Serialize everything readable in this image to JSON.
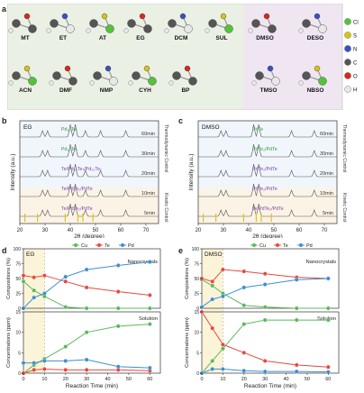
{
  "panel_a": {
    "letter": "a",
    "molecules": [
      "MT",
      "ET",
      "AT",
      "EG",
      "DCM",
      "SUL",
      "DMSO",
      "DESO",
      "ACN",
      "DMF",
      "NMP",
      "CYH",
      "BP",
      "TMSO",
      "NBSO"
    ],
    "legend": [
      "Cl",
      "S",
      "N",
      "C",
      "O",
      "H"
    ],
    "legend_colors": [
      "#54c23a",
      "#d8c21a",
      "#3b4fc2",
      "#555555",
      "#d42a1f",
      "#e8e8e8"
    ]
  },
  "panel_b": {
    "letter": "b",
    "solvent": "EG",
    "control_top": "Thermodynamic Control",
    "control_bottom": "Kinetic Control",
    "ylabel": "Intensity (a.u.)",
    "xlabel": "2θ (degree)",
    "xticks": [
      "20",
      "30",
      "40",
      "50",
      "60",
      "70"
    ],
    "traces": [
      {
        "time": "60min",
        "phase": "Pd₂₀Te₇",
        "y": 60
      },
      {
        "time": "30min",
        "phase": "Pd₂₀Te₇",
        "y": 96
      },
      {
        "time": "20min",
        "phase": "Te/Pd₂₀Te₇/Pd₂₀Te₇",
        "y": 133
      },
      {
        "time": "10min",
        "phase": "Te/PdTe₂/PdTe",
        "y": 183
      },
      {
        "time": "5min",
        "phase": "Te/PdTe₂/PdTe",
        "y": 223
      }
    ]
  },
  "panel_c": {
    "letter": "c",
    "solvent": "DMSO",
    "control_top": "Thermodynamic Control",
    "control_bottom": "Kinetic Control",
    "ylabel": "Intensity (a.u.)",
    "xlabel": "2θ (degree)",
    "xticks": [
      "20",
      "30",
      "40",
      "50",
      "60",
      "70"
    ],
    "traces": [
      {
        "time": "60min",
        "phase": "PdTe",
        "y": 60
      },
      {
        "time": "30min",
        "phase": "PdTe₂/PdTe",
        "y": 96
      },
      {
        "time": "20min",
        "phase": "PdTe₂/PdTe",
        "y": 133
      },
      {
        "time": "10min",
        "phase": "PdTe₂/PdTe",
        "y": 183
      },
      {
        "time": "5min",
        "phase": "Te/PdTe₂/PdTe",
        "y": 223
      }
    ]
  },
  "chart_data": [
    {
      "type": "line",
      "panel": "d",
      "title": "EG",
      "xlabel": "Reaction Time (min)",
      "ylabel_top": "Compositions (%)",
      "ylabel_bottom": "Concentrations (ppm)",
      "label_top": "Nanocrystals",
      "label_bottom": "Solution",
      "xlim": [
        0,
        65
      ],
      "ylim_top": [
        0,
        100
      ],
      "ylim_bottom": [
        0,
        15
      ],
      "legend": [
        "Cu",
        "Te",
        "Pd"
      ],
      "colors": [
        "#5cb85c",
        "#e8473f",
        "#3d8fd1"
      ],
      "x": [
        0,
        5,
        10,
        20,
        30,
        45,
        60
      ],
      "top_series": [
        {
          "name": "Cu",
          "values": [
            45,
            30,
            20,
            2,
            0,
            0,
            0
          ]
        },
        {
          "name": "Te",
          "values": [
            55,
            52,
            55,
            45,
            35,
            28,
            22
          ]
        },
        {
          "name": "Pd",
          "values": [
            0,
            18,
            25,
            53,
            65,
            72,
            78
          ]
        }
      ],
      "bottom_series": [
        {
          "name": "Cu",
          "values": [
            0,
            2,
            3.5,
            6.5,
            10,
            11.5,
            12
          ]
        },
        {
          "name": "Te",
          "values": [
            0,
            0.8,
            1,
            0.8,
            0.8,
            0.8,
            0.6
          ]
        },
        {
          "name": "Pd",
          "values": [
            2.5,
            2.5,
            3,
            3,
            3.3,
            1.6,
            1.3
          ]
        }
      ]
    },
    {
      "type": "line",
      "panel": "e",
      "title": "DMSO",
      "xlabel": "Reaction Time (min)",
      "ylabel_top": "Compositions (%)",
      "ylabel_bottom": "Concentrations (ppm)",
      "label_top": "Nanocrystals",
      "label_bottom": "Solution",
      "xlim": [
        0,
        65
      ],
      "ylim_top": [
        0,
        100
      ],
      "ylim_bottom": [
        0,
        15
      ],
      "legend": [
        "Cu",
        "Te",
        "Pd"
      ],
      "colors": [
        "#5cb85c",
        "#e8473f",
        "#3d8fd1"
      ],
      "x": [
        0,
        5,
        10,
        20,
        30,
        45,
        60
      ],
      "top_series": [
        {
          "name": "Cu",
          "values": [
            48,
            38,
            25,
            5,
            2,
            0,
            0
          ]
        },
        {
          "name": "Te",
          "values": [
            50,
            45,
            65,
            62,
            58,
            52,
            50
          ]
        },
        {
          "name": "Pd",
          "values": [
            2,
            15,
            20,
            35,
            40,
            48,
            50
          ]
        }
      ],
      "bottom_series": [
        {
          "name": "Cu",
          "values": [
            0,
            3,
            6,
            12,
            13,
            13,
            13
          ]
        },
        {
          "name": "Te",
          "values": [
            15,
            11,
            7,
            5,
            3,
            2,
            1.5
          ]
        },
        {
          "name": "Pd",
          "values": [
            0,
            1,
            1,
            0.6,
            0.4,
            0.4,
            0.3
          ]
        }
      ]
    }
  ]
}
